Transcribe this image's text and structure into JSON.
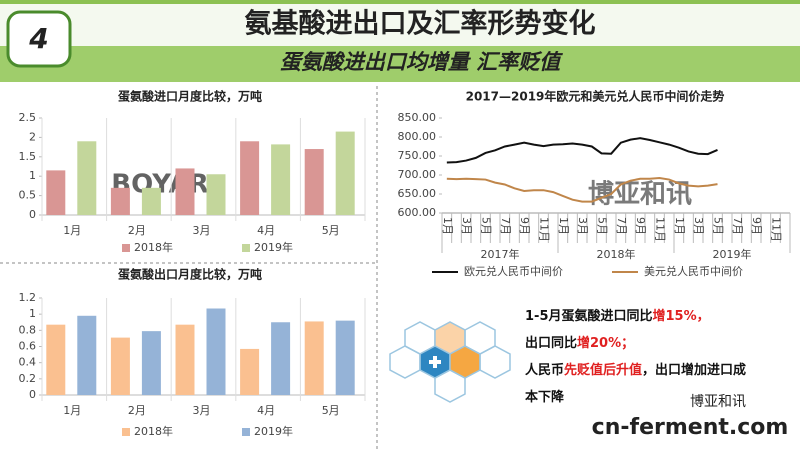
{
  "header": {
    "badge": "4",
    "title": "氨基酸进出口及汇率形势变化",
    "subtitle": "蛋氨酸进出口均增量 汇率贬值"
  },
  "chart_data": [
    {
      "type": "bar",
      "title": "蛋氨酸进口月度比较，万吨",
      "categories": [
        "1月",
        "2月",
        "3月",
        "4月",
        "5月"
      ],
      "series": [
        {
          "name": "2018年",
          "color": "#d99694",
          "values": [
            1.15,
            0.7,
            1.2,
            1.9,
            1.7
          ]
        },
        {
          "name": "2019年",
          "color": "#c3d69b",
          "values": [
            1.9,
            0.7,
            1.05,
            1.82,
            2.15
          ]
        }
      ],
      "ylim": [
        0,
        2.5
      ],
      "yticks": [
        0,
        0.5,
        1,
        1.5,
        2,
        2.5
      ]
    },
    {
      "type": "line",
      "title": "2017—2019年欧元和美元兑人民币中间价走势",
      "categories": [
        "1月",
        null,
        "3月",
        null,
        "5月",
        null,
        "7月",
        null,
        "9月",
        null,
        "11月",
        null,
        "1月",
        null,
        "3月",
        null,
        "5月",
        null,
        "7月",
        null,
        "9月",
        null,
        "11月",
        null,
        "1月",
        null,
        "3月",
        null,
        "5月",
        null,
        "7月",
        null,
        "9月",
        null,
        "11月",
        null
      ],
      "groups": [
        "2017年",
        "2018年",
        "2019年"
      ],
      "series": [
        {
          "name": "欧元兑人民币中间价",
          "color": "#111111",
          "values": [
            733,
            734,
            738,
            745,
            758,
            765,
            775,
            780,
            785,
            780,
            776,
            780,
            781,
            783,
            780,
            775,
            757,
            756,
            785,
            793,
            797,
            792,
            786,
            780,
            772,
            762,
            756,
            755,
            766,
            null,
            null,
            null,
            null,
            null,
            null,
            null
          ]
        },
        {
          "name": "美元兑人民币中间价",
          "color": "#c0864a",
          "values": [
            690,
            689,
            690,
            689,
            688,
            680,
            675,
            665,
            658,
            660,
            660,
            655,
            645,
            635,
            630,
            630,
            640,
            650,
            675,
            685,
            690,
            690,
            692,
            688,
            678,
            672,
            670,
            672,
            676,
            null,
            null,
            null,
            null,
            null,
            null,
            null
          ]
        }
      ],
      "ylim": [
        600,
        850
      ],
      "yticks": [
        {
          "value": 600,
          "label": "600.00"
        },
        {
          "value": 650,
          "label": "650.00"
        },
        {
          "value": 700,
          "label": "700.00"
        },
        {
          "value": 750,
          "label": "750.00"
        },
        {
          "value": 800,
          "label": "800.00"
        },
        {
          "value": 850,
          "label": "850.00"
        }
      ]
    },
    {
      "type": "bar",
      "title": "蛋氨酸出口月度比较，万吨",
      "categories": [
        "1月",
        "2月",
        "3月",
        "4月",
        "5月"
      ],
      "series": [
        {
          "name": "2018年",
          "color": "#fac090",
          "values": [
            0.87,
            0.71,
            0.87,
            0.57,
            0.91
          ]
        },
        {
          "name": "2019年",
          "color": "#95b3d7",
          "values": [
            0.98,
            0.79,
            1.07,
            0.9,
            0.92
          ]
        }
      ],
      "ylim": [
        0,
        1.2
      ],
      "yticks": [
        0,
        0.2,
        0.4,
        0.6,
        0.8,
        1,
        1.2
      ]
    }
  ],
  "notes": [
    [
      {
        "text": "1-5月蛋氨酸进口同比"
      },
      {
        "text": "增15%，",
        "highlight": true
      }
    ],
    [
      {
        "text": "出口同比"
      },
      {
        "text": "增20%；",
        "highlight": true
      }
    ],
    [
      {
        "text": "人民币"
      },
      {
        "text": "先贬值后升值",
        "highlight": true
      },
      {
        "text": "，出口增加进口成"
      }
    ],
    [
      {
        "text": "本下降"
      }
    ]
  ],
  "watermark": "BOYAR",
  "watermark_cn": "博亚和讯",
  "footer": "cn-ferment.com",
  "wechat": "博亚和讯"
}
